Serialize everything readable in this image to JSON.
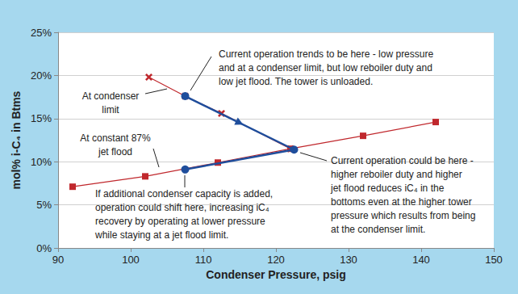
{
  "chart_data": {
    "type": "line",
    "x_label": "Condenser Pressure, psig",
    "y_label": "mol% i-C₄ in Btms",
    "xlim": [
      90,
      150
    ],
    "xticks": [
      90,
      100,
      110,
      120,
      130,
      140,
      150
    ],
    "ylim": [
      0,
      25
    ],
    "yticks": [
      {
        "value": 0,
        "label": "0%"
      },
      {
        "value": 5,
        "label": "5%"
      },
      {
        "value": 10,
        "label": "10%"
      },
      {
        "value": 15,
        "label": "15%"
      },
      {
        "value": 20,
        "label": "20%"
      },
      {
        "value": 25,
        "label": "25%"
      }
    ],
    "grid": true,
    "series": [
      {
        "x": [
          92,
          102,
          112,
          122,
          132,
          142
        ],
        "values": [
          7.1,
          8.3,
          9.9,
          11.5,
          13.0,
          14.6
        ],
        "color": "#c0282d",
        "marker": "square",
        "line_style": "solid"
      },
      {
        "x": [
          102.5,
          107.5,
          112.5,
          122
        ],
        "values": [
          19.8,
          17.6,
          15.6,
          11.5
        ],
        "color": "#c0282d",
        "marker": "x",
        "line_style": "solid"
      },
      {
        "x": [
          107.5,
          122.5,
          107.5
        ],
        "values": [
          17.6,
          11.4,
          9.1
        ],
        "color": "#1f4e9c",
        "marker": "circle",
        "line_style": "solid"
      }
    ],
    "annotations": [
      {
        "text": "Current operation trends to be here - low pressure\nand at a condenser limit, but low reboiler duty and\nlow jet flood. The tower is unloaded."
      },
      {
        "text": "At condenser\nlimit"
      },
      {
        "text": "At constant 87%\njet flood"
      },
      {
        "text": "If additional condenser capacity is added,\noperation could shift here, increasing iC₄\nrecovery by operating at lower pressure\nwhile staying at a jet flood limit."
      },
      {
        "text": "Current operation could be here -\nhigher reboiler duty and higher\njet flood reduces iC₄ in the\nbottoms even at the higher tower\npressure which results from being\nat the condenser limit."
      }
    ]
  }
}
